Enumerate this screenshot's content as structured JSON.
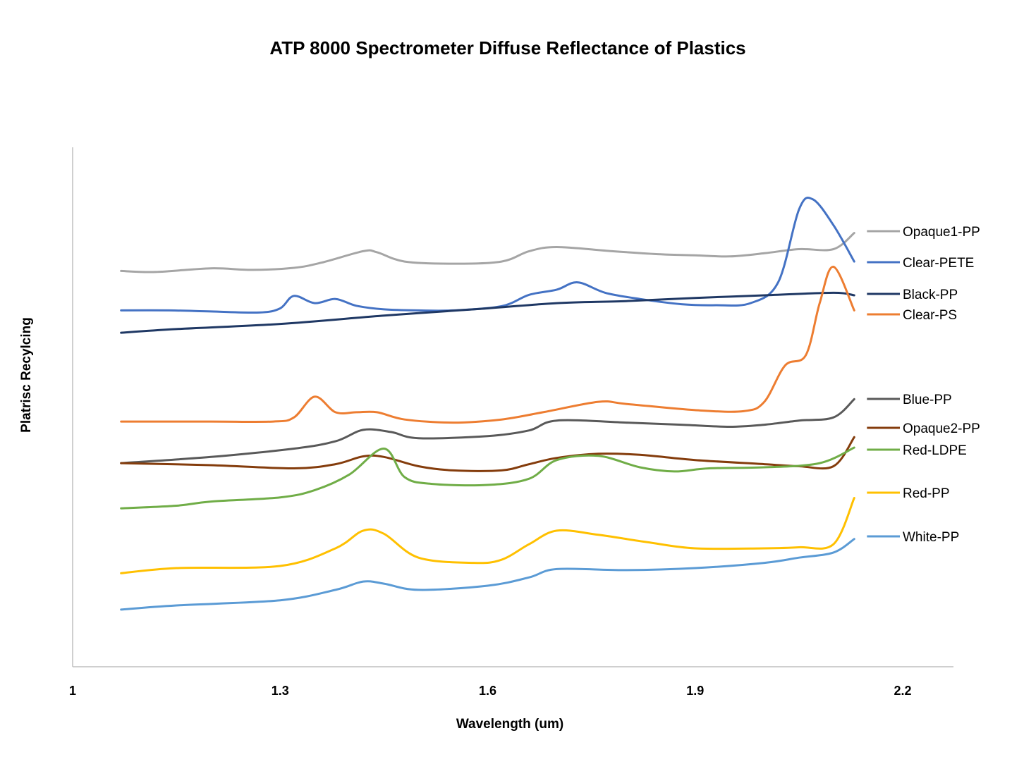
{
  "chart_data": {
    "type": "line",
    "title": "ATP 8000 Spectrometer Diffuse Reflectance of Plastics",
    "xlabel": "Wavelength (um)",
    "ylabel": "Platrisc Recylcing",
    "xlim": [
      1,
      2.2
    ],
    "ylim": [
      0,
      1
    ],
    "x_ticks": [
      "1",
      "1.3",
      "1.6",
      "1.9",
      "2.2"
    ],
    "x_tick_values": [
      1,
      1.3,
      1.6,
      1.9,
      2.2
    ],
    "y_ticks_visible": false,
    "grid": false,
    "legend_position": "right",
    "series": [
      {
        "name": "Opaque1-PP",
        "color": "#a5a5a5",
        "points": [
          [
            1.07,
            0.762
          ],
          [
            1.12,
            0.76
          ],
          [
            1.2,
            0.767
          ],
          [
            1.26,
            0.764
          ],
          [
            1.32,
            0.768
          ],
          [
            1.36,
            0.778
          ],
          [
            1.42,
            0.8
          ],
          [
            1.44,
            0.798
          ],
          [
            1.48,
            0.78
          ],
          [
            1.55,
            0.776
          ],
          [
            1.62,
            0.78
          ],
          [
            1.66,
            0.8
          ],
          [
            1.7,
            0.808
          ],
          [
            1.78,
            0.8
          ],
          [
            1.85,
            0.794
          ],
          [
            1.9,
            0.792
          ],
          [
            1.95,
            0.79
          ],
          [
            2.0,
            0.796
          ],
          [
            2.05,
            0.804
          ],
          [
            2.1,
            0.804
          ],
          [
            2.13,
            0.835
          ]
        ]
      },
      {
        "name": "Clear-PETE",
        "color": "#4472c4",
        "points": [
          [
            1.07,
            0.686
          ],
          [
            1.14,
            0.686
          ],
          [
            1.2,
            0.684
          ],
          [
            1.27,
            0.682
          ],
          [
            1.3,
            0.69
          ],
          [
            1.32,
            0.714
          ],
          [
            1.35,
            0.7
          ],
          [
            1.38,
            0.708
          ],
          [
            1.41,
            0.695
          ],
          [
            1.45,
            0.688
          ],
          [
            1.5,
            0.686
          ],
          [
            1.55,
            0.686
          ],
          [
            1.62,
            0.694
          ],
          [
            1.66,
            0.716
          ],
          [
            1.7,
            0.726
          ],
          [
            1.73,
            0.74
          ],
          [
            1.77,
            0.72
          ],
          [
            1.82,
            0.708
          ],
          [
            1.88,
            0.698
          ],
          [
            1.93,
            0.696
          ],
          [
            1.98,
            0.7
          ],
          [
            2.02,
            0.74
          ],
          [
            2.05,
            0.88
          ],
          [
            2.07,
            0.9
          ],
          [
            2.1,
            0.85
          ],
          [
            2.13,
            0.78
          ]
        ]
      },
      {
        "name": "Black-PP",
        "color": "#1f3864",
        "points": [
          [
            1.07,
            0.643
          ],
          [
            1.15,
            0.65
          ],
          [
            1.3,
            0.66
          ],
          [
            1.45,
            0.676
          ],
          [
            1.6,
            0.69
          ],
          [
            1.7,
            0.7
          ],
          [
            1.8,
            0.704
          ],
          [
            1.9,
            0.71
          ],
          [
            2.0,
            0.715
          ],
          [
            2.1,
            0.72
          ],
          [
            2.13,
            0.715
          ]
        ]
      },
      {
        "name": "Clear-PS",
        "color": "#ed7d31",
        "points": [
          [
            1.07,
            0.472
          ],
          [
            1.2,
            0.472
          ],
          [
            1.29,
            0.472
          ],
          [
            1.32,
            0.48
          ],
          [
            1.35,
            0.52
          ],
          [
            1.38,
            0.49
          ],
          [
            1.41,
            0.49
          ],
          [
            1.44,
            0.49
          ],
          [
            1.48,
            0.476
          ],
          [
            1.55,
            0.47
          ],
          [
            1.62,
            0.476
          ],
          [
            1.68,
            0.49
          ],
          [
            1.76,
            0.51
          ],
          [
            1.8,
            0.506
          ],
          [
            1.9,
            0.494
          ],
          [
            1.97,
            0.492
          ],
          [
            2.0,
            0.51
          ],
          [
            2.03,
            0.58
          ],
          [
            2.06,
            0.6
          ],
          [
            2.08,
            0.7
          ],
          [
            2.1,
            0.77
          ],
          [
            2.13,
            0.686
          ]
        ]
      },
      {
        "name": "Blue-PP",
        "color": "#595959",
        "points": [
          [
            1.07,
            0.392
          ],
          [
            1.2,
            0.404
          ],
          [
            1.32,
            0.42
          ],
          [
            1.38,
            0.434
          ],
          [
            1.42,
            0.456
          ],
          [
            1.46,
            0.452
          ],
          [
            1.5,
            0.44
          ],
          [
            1.6,
            0.444
          ],
          [
            1.66,
            0.455
          ],
          [
            1.7,
            0.474
          ],
          [
            1.8,
            0.47
          ],
          [
            1.88,
            0.466
          ],
          [
            1.95,
            0.462
          ],
          [
            2.0,
            0.466
          ],
          [
            2.05,
            0.474
          ],
          [
            2.1,
            0.48
          ],
          [
            2.13,
            0.515
          ]
        ]
      },
      {
        "name": "Opaque2-PP",
        "color": "#843c0c",
        "points": [
          [
            1.07,
            0.392
          ],
          [
            1.2,
            0.388
          ],
          [
            1.32,
            0.382
          ],
          [
            1.38,
            0.39
          ],
          [
            1.42,
            0.405
          ],
          [
            1.45,
            0.404
          ],
          [
            1.5,
            0.386
          ],
          [
            1.55,
            0.378
          ],
          [
            1.62,
            0.378
          ],
          [
            1.66,
            0.39
          ],
          [
            1.7,
            0.402
          ],
          [
            1.76,
            0.41
          ],
          [
            1.82,
            0.408
          ],
          [
            1.9,
            0.398
          ],
          [
            2.0,
            0.39
          ],
          [
            2.05,
            0.386
          ],
          [
            2.1,
            0.386
          ],
          [
            2.13,
            0.442
          ]
        ]
      },
      {
        "name": "Red-LDPE",
        "color": "#70ad47",
        "points": [
          [
            1.07,
            0.305
          ],
          [
            1.15,
            0.31
          ],
          [
            1.2,
            0.318
          ],
          [
            1.3,
            0.326
          ],
          [
            1.35,
            0.34
          ],
          [
            1.4,
            0.37
          ],
          [
            1.45,
            0.42
          ],
          [
            1.48,
            0.365
          ],
          [
            1.52,
            0.352
          ],
          [
            1.6,
            0.35
          ],
          [
            1.66,
            0.362
          ],
          [
            1.7,
            0.398
          ],
          [
            1.76,
            0.406
          ],
          [
            1.82,
            0.384
          ],
          [
            1.87,
            0.376
          ],
          [
            1.92,
            0.382
          ],
          [
            2.0,
            0.384
          ],
          [
            2.08,
            0.392
          ],
          [
            2.13,
            0.422
          ]
        ]
      },
      {
        "name": "Red-PP",
        "color": "#ffc000",
        "points": [
          [
            1.07,
            0.18
          ],
          [
            1.15,
            0.19
          ],
          [
            1.3,
            0.194
          ],
          [
            1.38,
            0.228
          ],
          [
            1.42,
            0.262
          ],
          [
            1.45,
            0.256
          ],
          [
            1.5,
            0.21
          ],
          [
            1.58,
            0.2
          ],
          [
            1.62,
            0.206
          ],
          [
            1.66,
            0.236
          ],
          [
            1.7,
            0.262
          ],
          [
            1.76,
            0.254
          ],
          [
            1.83,
            0.24
          ],
          [
            1.9,
            0.228
          ],
          [
            2.0,
            0.228
          ],
          [
            2.05,
            0.23
          ],
          [
            2.1,
            0.236
          ],
          [
            2.13,
            0.325
          ]
        ]
      },
      {
        "name": "White-PP",
        "color": "#5b9bd5",
        "points": [
          [
            1.07,
            0.11
          ],
          [
            1.15,
            0.118
          ],
          [
            1.3,
            0.128
          ],
          [
            1.38,
            0.148
          ],
          [
            1.42,
            0.164
          ],
          [
            1.45,
            0.16
          ],
          [
            1.5,
            0.148
          ],
          [
            1.6,
            0.156
          ],
          [
            1.66,
            0.172
          ],
          [
            1.7,
            0.188
          ],
          [
            1.8,
            0.186
          ],
          [
            1.9,
            0.19
          ],
          [
            2.0,
            0.2
          ],
          [
            2.05,
            0.21
          ],
          [
            2.1,
            0.22
          ],
          [
            2.13,
            0.246
          ]
        ]
      }
    ]
  }
}
